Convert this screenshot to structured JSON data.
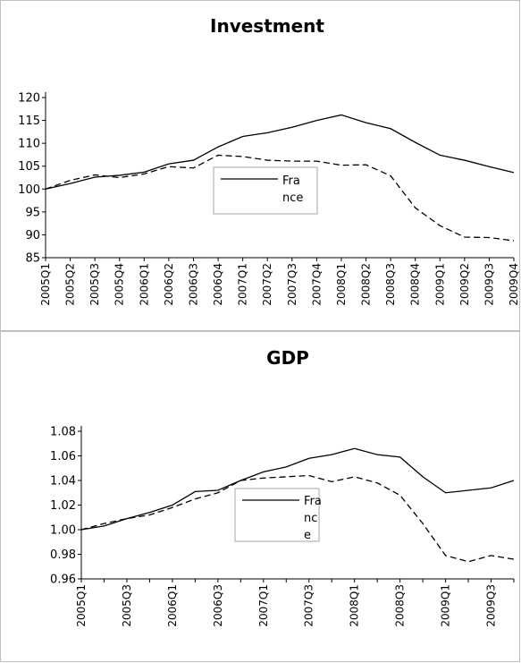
{
  "chart_data": [
    {
      "type": "line",
      "title": "Investment",
      "xlabel": "",
      "ylabel": "",
      "ylim": [
        85,
        120
      ],
      "yticks": [
        "120",
        "115",
        "110",
        "105",
        "100",
        "95",
        "90",
        "85"
      ],
      "x": [
        "2005Q1",
        "2005Q2",
        "2005Q3",
        "2005Q4",
        "2006Q1",
        "2006Q2",
        "2006Q3",
        "2006Q4",
        "2007Q1",
        "2007Q2",
        "2007Q3",
        "2007Q4",
        "2008Q1",
        "2008Q2",
        "2008Q3",
        "2008Q4",
        "2009Q1",
        "2009Q2",
        "2009Q3",
        "2009Q4"
      ],
      "x_tick_labels": [
        "2005Q1",
        "2005Q2",
        "2005Q3",
        "2005Q4",
        "2006Q1",
        "2006Q2",
        "2006Q3",
        "2006Q4",
        "2007Q1",
        "2007Q2",
        "2007Q3",
        "2007Q4",
        "2008Q1",
        "2008Q2",
        "2008Q3",
        "2008Q4",
        "2009Q1",
        "2009Q2",
        "2009Q3",
        "2009Q4"
      ],
      "legend_label": "France",
      "legend_lines": [
        "Fra",
        "nce"
      ],
      "series": [
        {
          "name": "France",
          "style": "solid",
          "color": "#000000",
          "values": [
            100,
            101.2,
            102.6,
            103.0,
            103.7,
            105.5,
            106.3,
            109.2,
            111.5,
            112.3,
            113.5,
            115.0,
            116.2,
            114.5,
            113.2,
            110.2,
            107.4,
            106.3,
            104.9,
            103.6
          ]
        },
        {
          "style": "dashed",
          "color": "#000000",
          "values": [
            100,
            101.9,
            103.1,
            102.5,
            103.3,
            104.9,
            104.6,
            107.4,
            107.1,
            106.3,
            106.1,
            106.1,
            105.2,
            105.3,
            102.9,
            95.9,
            92.0,
            89.5,
            89.4,
            88.7
          ]
        }
      ]
    },
    {
      "type": "line",
      "title": "GDP",
      "xlabel": "",
      "ylabel": "",
      "ylim": [
        0.96,
        1.08
      ],
      "yticks": [
        "1.08",
        "1.06",
        "1.04",
        "1.02",
        "1.00",
        "0.98",
        "0.96"
      ],
      "x": [
        "2005Q1",
        "2005Q2",
        "2005Q3",
        "2005Q4",
        "2006Q1",
        "2006Q2",
        "2006Q3",
        "2006Q4",
        "2007Q1",
        "2007Q2",
        "2007Q3",
        "2007Q4",
        "2008Q1",
        "2008Q2",
        "2008Q3",
        "2008Q4",
        "2009Q1",
        "2009Q2",
        "2009Q3",
        "2009Q4"
      ],
      "x_tick_labels": [
        "2005Q1",
        "",
        "2005Q3",
        "",
        "2006Q1",
        "",
        "2006Q3",
        "",
        "2007Q1",
        "",
        "2007Q3",
        "",
        "2008Q1",
        "",
        "2008Q3",
        "",
        "2009Q1",
        "",
        "2009Q3",
        ""
      ],
      "legend_label": "France",
      "legend_lines": [
        "Fra",
        "nc",
        "e"
      ],
      "series": [
        {
          "name": "France",
          "style": "solid",
          "color": "#000000",
          "values": [
            1.0,
            1.003,
            1.009,
            1.014,
            1.02,
            1.031,
            1.032,
            1.04,
            1.047,
            1.051,
            1.058,
            1.061,
            1.066,
            1.061,
            1.059,
            1.043,
            1.03,
            1.032,
            1.034,
            1.04
          ]
        },
        {
          "style": "dashed",
          "color": "#000000",
          "values": [
            1.0,
            1.005,
            1.009,
            1.012,
            1.018,
            1.025,
            1.03,
            1.04,
            1.042,
            1.043,
            1.044,
            1.039,
            1.043,
            1.038,
            1.028,
            1.005,
            0.979,
            0.974,
            0.979,
            0.976
          ]
        }
      ]
    }
  ]
}
